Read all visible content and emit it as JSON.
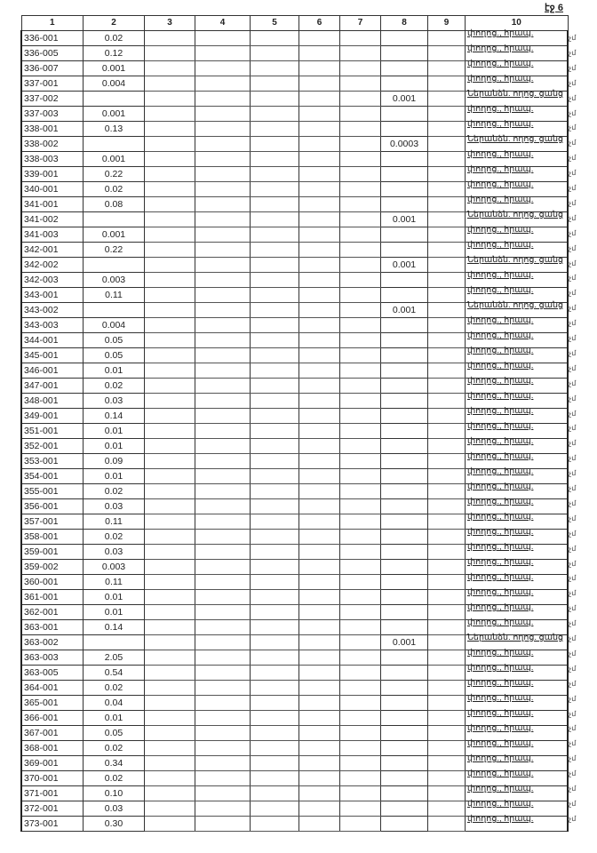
{
  "page_label": "էջ 6",
  "headers": [
    "1",
    "2",
    "3",
    "4",
    "5",
    "6",
    "7",
    "8",
    "9",
    "10"
  ],
  "margin_mark": "չմ",
  "rows": [
    {
      "id": "336-001",
      "c2": "0.02",
      "c8": "",
      "c10": "փողոց., հրապ."
    },
    {
      "id": "336-005",
      "c2": "0.12",
      "c8": "",
      "c10": "փողոց., հրապ."
    },
    {
      "id": "336-007",
      "c2": "0.001",
      "c8": "",
      "c10": "փողոց., հրապ."
    },
    {
      "id": "337-001",
      "c2": "0.004",
      "c8": "",
      "c10": "փողոց., հրապ."
    },
    {
      "id": "337-002",
      "c2": "",
      "c8": "0.001",
      "c10": "Ներանձն. ողոց. ցանց"
    },
    {
      "id": "337-003",
      "c2": "0.001",
      "c8": "",
      "c10": "փողոց., հրապ."
    },
    {
      "id": "338-001",
      "c2": "0.13",
      "c8": "",
      "c10": "փողոց., հրապ."
    },
    {
      "id": "338-002",
      "c2": "",
      "c8": "0.0003",
      "c10": "Ներանձն. ողոց. ցանց"
    },
    {
      "id": "338-003",
      "c2": "0.001",
      "c8": "",
      "c10": "փողոց., հրապ."
    },
    {
      "id": "339-001",
      "c2": "0.22",
      "c8": "",
      "c10": "փողոց., հրապ."
    },
    {
      "id": "340-001",
      "c2": "0.02",
      "c8": "",
      "c10": "փողոց., հրապ."
    },
    {
      "id": "341-001",
      "c2": "0.08",
      "c8": "",
      "c10": "փողոց., հրապ."
    },
    {
      "id": "341-002",
      "c2": "",
      "c8": "0.001",
      "c10": "Ներանձն. ողոց. ցանց"
    },
    {
      "id": "341-003",
      "c2": "0.001",
      "c8": "",
      "c10": "փողոց., հրապ."
    },
    {
      "id": "342-001",
      "c2": "0.22",
      "c8": "",
      "c10": "փողոց., հրապ."
    },
    {
      "id": "342-002",
      "c2": "",
      "c8": "0.001",
      "c10": "Ներանձն. ողոց. ցանց"
    },
    {
      "id": "342-003",
      "c2": "0.003",
      "c8": "",
      "c10": "փողոց., հրապ."
    },
    {
      "id": "343-001",
      "c2": "0.11",
      "c8": "",
      "c10": "փողոց., հրապ."
    },
    {
      "id": "343-002",
      "c2": "",
      "c8": "0.001",
      "c10": "Ներանձն. ողոց. ցանց"
    },
    {
      "id": "343-003",
      "c2": "0.004",
      "c8": "",
      "c10": "փողոց., հրապ."
    },
    {
      "id": "344-001",
      "c2": "0.05",
      "c8": "",
      "c10": "փողոց., հրապ."
    },
    {
      "id": "345-001",
      "c2": "0.05",
      "c8": "",
      "c10": "փողոց., հրապ."
    },
    {
      "id": "346-001",
      "c2": "0.01",
      "c8": "",
      "c10": "փողոց., հրապ."
    },
    {
      "id": "347-001",
      "c2": "0.02",
      "c8": "",
      "c10": "փողոց., հրապ."
    },
    {
      "id": "348-001",
      "c2": "0.03",
      "c8": "",
      "c10": "փողոց., հրապ."
    },
    {
      "id": "349-001",
      "c2": "0.14",
      "c8": "",
      "c10": "փողոց., հրապ."
    },
    {
      "id": "351-001",
      "c2": "0.01",
      "c8": "",
      "c10": "փողոց., հրապ."
    },
    {
      "id": "352-001",
      "c2": "0.01",
      "c8": "",
      "c10": "փողոց., հրապ."
    },
    {
      "id": "353-001",
      "c2": "0.09",
      "c8": "",
      "c10": "փողոց., հրապ."
    },
    {
      "id": "354-001",
      "c2": "0.01",
      "c8": "",
      "c10": "փողոց., հրապ."
    },
    {
      "id": "355-001",
      "c2": "0.02",
      "c8": "",
      "c10": "փողոց., հրապ."
    },
    {
      "id": "356-001",
      "c2": "0.03",
      "c8": "",
      "c10": "փողոց., հրապ."
    },
    {
      "id": "357-001",
      "c2": "0.11",
      "c8": "",
      "c10": "փողոց., հրապ."
    },
    {
      "id": "358-001",
      "c2": "0.02",
      "c8": "",
      "c10": "փողոց., հրապ."
    },
    {
      "id": "359-001",
      "c2": "0.03",
      "c8": "",
      "c10": "փողոց., հրապ."
    },
    {
      "id": "359-002",
      "c2": "0.003",
      "c8": "",
      "c10": "փողոց., հրապ."
    },
    {
      "id": "360-001",
      "c2": "0.11",
      "c8": "",
      "c10": "փողոց., հրապ."
    },
    {
      "id": "361-001",
      "c2": "0.01",
      "c8": "",
      "c10": "փողոց., հրապ."
    },
    {
      "id": "362-001",
      "c2": "0.01",
      "c8": "",
      "c10": "փողոց., հրապ."
    },
    {
      "id": "363-001",
      "c2": "0.14",
      "c8": "",
      "c10": "փողոց., հրապ."
    },
    {
      "id": "363-002",
      "c2": "",
      "c8": "0.001",
      "c10": "Ներանձն. ողոց. ցանց"
    },
    {
      "id": "363-003",
      "c2": "2.05",
      "c8": "",
      "c10": "փողոց., հրապ."
    },
    {
      "id": "363-005",
      "c2": "0.54",
      "c8": "",
      "c10": "փողոց., հրապ."
    },
    {
      "id": "364-001",
      "c2": "0.02",
      "c8": "",
      "c10": "փողոց., հրապ."
    },
    {
      "id": "365-001",
      "c2": "0.04",
      "c8": "",
      "c10": "փողոց., հրապ."
    },
    {
      "id": "366-001",
      "c2": "0.01",
      "c8": "",
      "c10": "փողոց., հրապ."
    },
    {
      "id": "367-001",
      "c2": "0.05",
      "c8": "",
      "c10": "փողոց., հրապ."
    },
    {
      "id": "368-001",
      "c2": "0.02",
      "c8": "",
      "c10": "փողոց., հրապ."
    },
    {
      "id": "369-001",
      "c2": "0.34",
      "c8": "",
      "c10": "փողոց., հրապ."
    },
    {
      "id": "370-001",
      "c2": "0.02",
      "c8": "",
      "c10": "փողոց., հրապ."
    },
    {
      "id": "371-001",
      "c2": "0.10",
      "c8": "",
      "c10": "փողոց., հրապ."
    },
    {
      "id": "372-001",
      "c2": "0.03",
      "c8": "",
      "c10": "փողոց., հրապ."
    },
    {
      "id": "373-001",
      "c2": "0.30",
      "c8": "",
      "c10": "փողոց., հրապ."
    }
  ]
}
